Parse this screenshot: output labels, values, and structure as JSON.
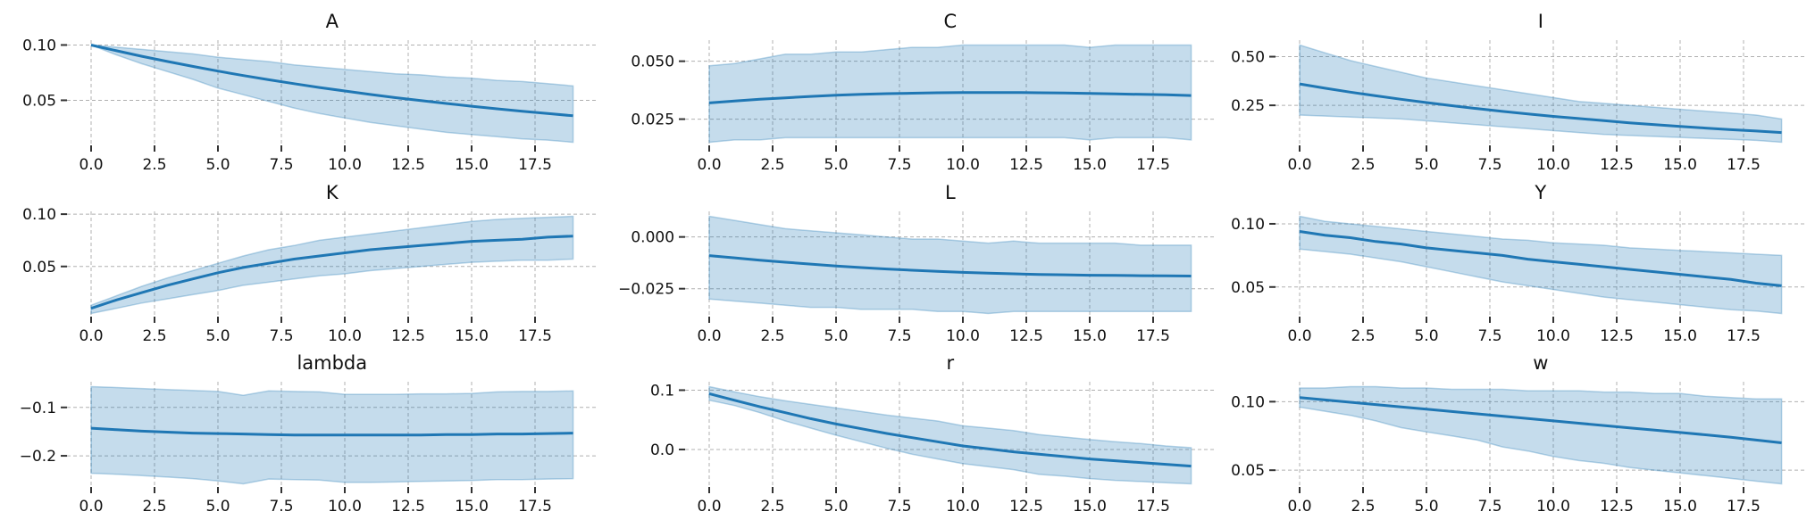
{
  "chart_data": {
    "type": "line",
    "layout": "3x3 grid of subplots, each a mean line with a shaded band",
    "colors": {
      "line": "#1f77b4",
      "band": "#1f77b4",
      "grid": "#b0b0b0"
    },
    "grid": true,
    "x": [
      0,
      1,
      2,
      3,
      4,
      5,
      6,
      7,
      8,
      9,
      10,
      11,
      12,
      13,
      14,
      15,
      16,
      17,
      18,
      19
    ],
    "xlim": [
      -0.95,
      19.95
    ],
    "xticks": [
      {
        "v": 0,
        "label": "0.0"
      },
      {
        "v": 2.5,
        "label": "2.5"
      },
      {
        "v": 5,
        "label": "5.0"
      },
      {
        "v": 7.5,
        "label": "7.5"
      },
      {
        "v": 10,
        "label": "10.0"
      },
      {
        "v": 12.5,
        "label": "12.5"
      },
      {
        "v": 15,
        "label": "15.0"
      },
      {
        "v": 17.5,
        "label": "17.5"
      }
    ],
    "panels": [
      {
        "title": "A",
        "yticks": [
          {
            "v": 0.1,
            "label": "0.10"
          },
          {
            "v": 0.05,
            "label": "0.05"
          }
        ],
        "mean": [
          0.1,
          0.0948,
          0.0898,
          0.0851,
          0.0807,
          0.0764,
          0.0724,
          0.0686,
          0.065,
          0.0616,
          0.0584,
          0.0553,
          0.0524,
          0.0497,
          0.0471,
          0.0446,
          0.0423,
          0.0401,
          0.038,
          0.036
        ],
        "upper": [
          0.1,
          0.098,
          0.096,
          0.094,
          0.092,
          0.089,
          0.087,
          0.085,
          0.082,
          0.08,
          0.078,
          0.076,
          0.074,
          0.073,
          0.071,
          0.07,
          0.068,
          0.067,
          0.065,
          0.063
        ],
        "lower": [
          0.1,
          0.091,
          0.083,
          0.076,
          0.069,
          0.061,
          0.055,
          0.049,
          0.043,
          0.038,
          0.034,
          0.03,
          0.027,
          0.024,
          0.021,
          0.019,
          0.017,
          0.015,
          0.014,
          0.012
        ]
      },
      {
        "title": "C",
        "yticks": [
          {
            "v": 0.05,
            "label": "0.050"
          },
          {
            "v": 0.025,
            "label": "0.025"
          }
        ],
        "mean": [
          0.032,
          0.0328,
          0.0336,
          0.0342,
          0.0348,
          0.0353,
          0.0357,
          0.036,
          0.0362,
          0.0364,
          0.0365,
          0.0365,
          0.0365,
          0.0364,
          0.0363,
          0.0361,
          0.0359,
          0.0357,
          0.0355,
          0.0352
        ],
        "upper": [
          0.048,
          0.049,
          0.051,
          0.053,
          0.053,
          0.054,
          0.054,
          0.055,
          0.056,
          0.056,
          0.057,
          0.057,
          0.057,
          0.057,
          0.057,
          0.056,
          0.057,
          0.057,
          0.057,
          0.057
        ],
        "lower": [
          0.015,
          0.016,
          0.016,
          0.017,
          0.017,
          0.017,
          0.017,
          0.017,
          0.017,
          0.017,
          0.017,
          0.017,
          0.017,
          0.017,
          0.017,
          0.016,
          0.017,
          0.017,
          0.017,
          0.016
        ]
      },
      {
        "title": "I",
        "yticks": [
          {
            "v": 0.5,
            "label": "0.50"
          },
          {
            "v": 0.25,
            "label": "0.25"
          }
        ],
        "mean": [
          0.36,
          0.338,
          0.318,
          0.299,
          0.281,
          0.264,
          0.248,
          0.233,
          0.219,
          0.206,
          0.193,
          0.182,
          0.171,
          0.16,
          0.151,
          0.142,
          0.133,
          0.125,
          0.118,
          0.11
        ],
        "upper": [
          0.56,
          0.52,
          0.48,
          0.45,
          0.42,
          0.39,
          0.37,
          0.35,
          0.33,
          0.31,
          0.29,
          0.27,
          0.26,
          0.25,
          0.24,
          0.23,
          0.22,
          0.21,
          0.2,
          0.18
        ],
        "lower": [
          0.2,
          0.195,
          0.19,
          0.185,
          0.18,
          0.17,
          0.16,
          0.15,
          0.14,
          0.13,
          0.12,
          0.11,
          0.1,
          0.095,
          0.09,
          0.085,
          0.08,
          0.075,
          0.07,
          0.06
        ]
      },
      {
        "title": "K",
        "yticks": [
          {
            "v": 0.1,
            "label": "0.10"
          },
          {
            "v": 0.05,
            "label": "0.05"
          }
        ],
        "mean": [
          0.01,
          0.018,
          0.025,
          0.032,
          0.038,
          0.044,
          0.049,
          0.053,
          0.057,
          0.06,
          0.063,
          0.066,
          0.068,
          0.07,
          0.072,
          0.074,
          0.075,
          0.076,
          0.078,
          0.079
        ],
        "upper": [
          0.013,
          0.022,
          0.031,
          0.039,
          0.046,
          0.053,
          0.06,
          0.066,
          0.07,
          0.075,
          0.078,
          0.081,
          0.084,
          0.087,
          0.09,
          0.093,
          0.095,
          0.096,
          0.097,
          0.098
        ],
        "lower": [
          0.005,
          0.01,
          0.015,
          0.019,
          0.023,
          0.027,
          0.032,
          0.035,
          0.038,
          0.041,
          0.043,
          0.046,
          0.048,
          0.05,
          0.052,
          0.054,
          0.055,
          0.056,
          0.056,
          0.057
        ]
      },
      {
        "title": "L",
        "yticks": [
          {
            "v": 0,
            "label": "0.000"
          },
          {
            "v": -0.025,
            "label": "−0.025"
          }
        ],
        "mean": [
          -0.009,
          -0.0101,
          -0.0112,
          -0.0122,
          -0.0131,
          -0.014,
          -0.0148,
          -0.0155,
          -0.0161,
          -0.0166,
          -0.0171,
          -0.0175,
          -0.0178,
          -0.0181,
          -0.0183,
          -0.0185,
          -0.0186,
          -0.0187,
          -0.0188,
          -0.0189
        ],
        "upper": [
          0.01,
          0.008,
          0.006,
          0.004,
          0.003,
          0.002,
          0.001,
          0.0,
          -0.001,
          -0.001,
          -0.002,
          -0.003,
          -0.002,
          -0.003,
          -0.003,
          -0.003,
          -0.003,
          -0.004,
          -0.004,
          -0.004
        ],
        "lower": [
          -0.03,
          -0.031,
          -0.032,
          -0.033,
          -0.034,
          -0.034,
          -0.035,
          -0.035,
          -0.035,
          -0.036,
          -0.036,
          -0.037,
          -0.036,
          -0.036,
          -0.036,
          -0.036,
          -0.036,
          -0.036,
          -0.036,
          -0.036
        ]
      },
      {
        "title": "Y",
        "yticks": [
          {
            "v": 0.1,
            "label": "0.10"
          },
          {
            "v": 0.05,
            "label": "0.05"
          }
        ],
        "mean": [
          0.094,
          0.091,
          0.089,
          0.086,
          0.084,
          0.081,
          0.079,
          0.077,
          0.075,
          0.072,
          0.07,
          0.068,
          0.066,
          0.064,
          0.062,
          0.06,
          0.058,
          0.056,
          0.053,
          0.051
        ],
        "upper": [
          0.106,
          0.102,
          0.1,
          0.098,
          0.096,
          0.094,
          0.092,
          0.09,
          0.088,
          0.087,
          0.085,
          0.084,
          0.083,
          0.081,
          0.08,
          0.079,
          0.078,
          0.077,
          0.076,
          0.075
        ],
        "lower": [
          0.08,
          0.078,
          0.076,
          0.073,
          0.07,
          0.066,
          0.062,
          0.058,
          0.054,
          0.051,
          0.048,
          0.045,
          0.042,
          0.04,
          0.038,
          0.036,
          0.034,
          0.032,
          0.031,
          0.029
        ]
      },
      {
        "title": "lambda",
        "yticks": [
          {
            "v": -0.1,
            "label": "−0.1"
          },
          {
            "v": -0.2,
            "label": "−0.2"
          }
        ],
        "mean": [
          -0.143,
          -0.146,
          -0.149,
          -0.151,
          -0.153,
          -0.154,
          -0.155,
          -0.156,
          -0.157,
          -0.157,
          -0.157,
          -0.157,
          -0.157,
          -0.157,
          -0.156,
          -0.156,
          -0.155,
          -0.155,
          -0.154,
          -0.153
        ],
        "upper": [
          -0.057,
          -0.059,
          -0.061,
          -0.063,
          -0.065,
          -0.067,
          -0.075,
          -0.066,
          -0.067,
          -0.068,
          -0.073,
          -0.073,
          -0.073,
          -0.072,
          -0.072,
          -0.071,
          -0.068,
          -0.067,
          -0.067,
          -0.066
        ],
        "lower": [
          -0.236,
          -0.238,
          -0.241,
          -0.244,
          -0.247,
          -0.252,
          -0.258,
          -0.248,
          -0.249,
          -0.25,
          -0.255,
          -0.255,
          -0.254,
          -0.253,
          -0.252,
          -0.251,
          -0.249,
          -0.249,
          -0.248,
          -0.247
        ]
      },
      {
        "title": "r",
        "yticks": [
          {
            "v": 0.1,
            "label": "0.1"
          },
          {
            "v": 0.0,
            "label": "0.0"
          }
        ],
        "mean": [
          0.094,
          0.083,
          0.072,
          0.062,
          0.052,
          0.043,
          0.035,
          0.027,
          0.02,
          0.013,
          0.006,
          0.001,
          -0.004,
          -0.008,
          -0.012,
          -0.016,
          -0.019,
          -0.022,
          -0.025,
          -0.028
        ],
        "upper": [
          0.106,
          0.097,
          0.089,
          0.082,
          0.076,
          0.07,
          0.064,
          0.058,
          0.053,
          0.048,
          0.04,
          0.036,
          0.032,
          0.025,
          0.021,
          0.017,
          0.013,
          0.01,
          0.006,
          0.003
        ],
        "lower": [
          0.083,
          0.074,
          0.062,
          0.048,
          0.036,
          0.024,
          0.013,
          0.002,
          -0.008,
          -0.016,
          -0.024,
          -0.029,
          -0.034,
          -0.042,
          -0.045,
          -0.049,
          -0.052,
          -0.054,
          -0.056,
          -0.058
        ]
      },
      {
        "title": "w",
        "yticks": [
          {
            "v": 0.1,
            "label": "0.10"
          },
          {
            "v": 0.05,
            "label": "0.05"
          }
        ],
        "mean": [
          0.103,
          0.1013,
          0.0996,
          0.0979,
          0.0962,
          0.0945,
          0.0928,
          0.0911,
          0.0894,
          0.0877,
          0.086,
          0.0843,
          0.0826,
          0.0809,
          0.0792,
          0.0775,
          0.0758,
          0.0741,
          0.072,
          0.07
        ],
        "upper": [
          0.11,
          0.11,
          0.111,
          0.111,
          0.11,
          0.11,
          0.109,
          0.109,
          0.109,
          0.108,
          0.108,
          0.108,
          0.107,
          0.107,
          0.106,
          0.106,
          0.104,
          0.103,
          0.102,
          0.102
        ],
        "lower": [
          0.096,
          0.093,
          0.09,
          0.086,
          0.081,
          0.078,
          0.075,
          0.072,
          0.067,
          0.064,
          0.06,
          0.057,
          0.055,
          0.052,
          0.05,
          0.048,
          0.046,
          0.044,
          0.042,
          0.04
        ]
      }
    ]
  }
}
